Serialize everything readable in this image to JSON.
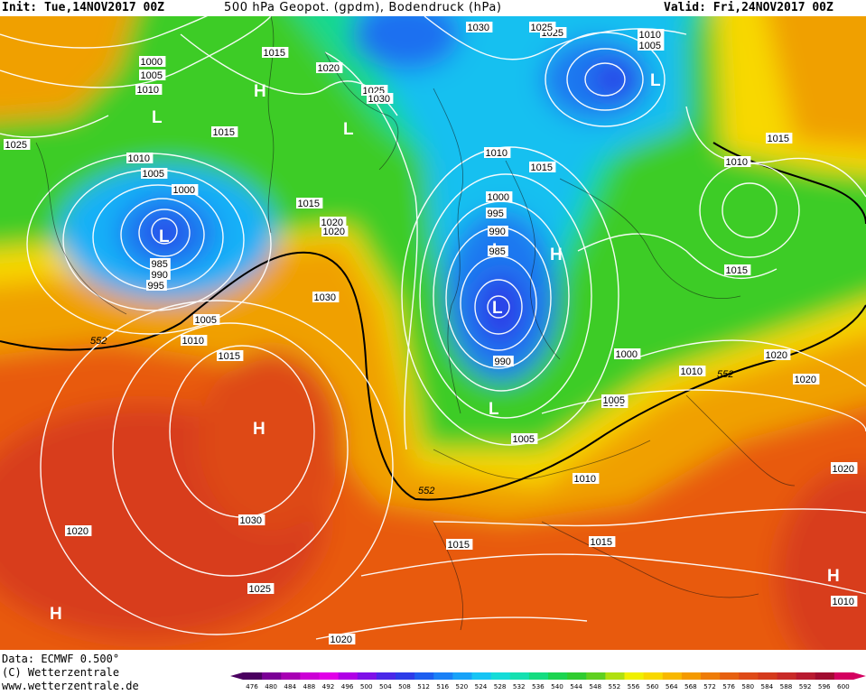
{
  "header": {
    "init": "Init: Tue,14NOV2017 00Z",
    "title": "500 hPa Geopot. (gpdm), Bodendruck (hPa)",
    "valid": "Valid: Fri,24NOV2017 00Z"
  },
  "footer": {
    "data_line": "Data: ECMWF  0.500°",
    "copyright": "(C) Wetterzentrale",
    "url": "www.wetterzentrale.de"
  },
  "colorbar": {
    "ticks": [
      "476",
      "480",
      "484",
      "488",
      "492",
      "496",
      "500",
      "504",
      "508",
      "512",
      "516",
      "520",
      "524",
      "528",
      "532",
      "536",
      "540",
      "544",
      "548",
      "552",
      "556",
      "560",
      "564",
      "568",
      "572",
      "576",
      "580",
      "584",
      "588",
      "592",
      "596",
      "600"
    ],
    "colors": [
      "#4a0060",
      "#7a0096",
      "#a800b4",
      "#cc00d6",
      "#e100e8",
      "#b000e6",
      "#7e10e8",
      "#4a28e8",
      "#2c3ce8",
      "#1c5ef0",
      "#1a80f6",
      "#18a2f8",
      "#16c4f4",
      "#14dcd8",
      "#14e0b0",
      "#14dc80",
      "#1cd450",
      "#30cc30",
      "#60d020",
      "#b0e010",
      "#f0f000",
      "#f8d800",
      "#f8b800",
      "#f49a00",
      "#ee7c08",
      "#e66010",
      "#de4a18",
      "#d43a1c",
      "#c82a28",
      "#b81a30",
      "#a00c30",
      "#d40060"
    ]
  },
  "map_labels": {
    "highs_lows": [
      "H",
      "L",
      "L",
      "L",
      "L",
      "L",
      "L",
      "L",
      "H",
      "H",
      "H",
      "H"
    ],
    "gph_552": [
      "552",
      "552",
      "552"
    ],
    "pressure": [
      "1000",
      "1005",
      "1010",
      "1025",
      "1015",
      "1010",
      "1005",
      "1000",
      "985",
      "990",
      "995",
      "1005",
      "1010",
      "1015",
      "1020",
      "1025",
      "1030",
      "1030",
      "1025",
      "1020",
      "1020",
      "1015",
      "1010",
      "1010",
      "1005",
      "1000",
      "995",
      "990",
      "985",
      "990",
      "1000",
      "1005",
      "1030",
      "1025",
      "1020",
      "1015",
      "1010",
      "1005",
      "1015",
      "1015",
      "1010",
      "1015",
      "1015",
      "1020",
      "1020",
      "1020",
      "1010",
      "1005",
      "1010",
      "1015",
      "1020",
      "1025",
      "1030",
      "1020"
    ]
  }
}
